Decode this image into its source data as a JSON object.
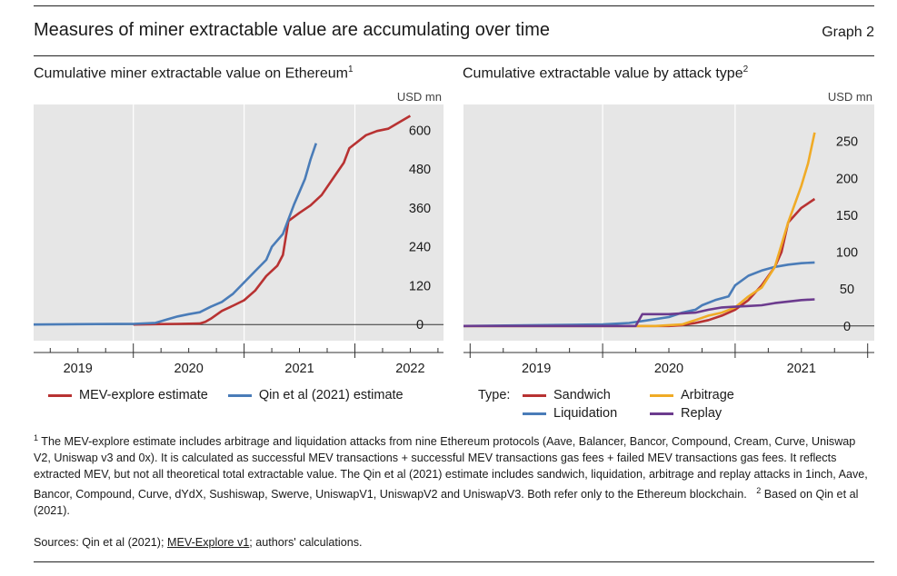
{
  "header": {
    "title": "Measures of miner extractable value are accumulating over time",
    "graph_label": "Graph 2"
  },
  "colors": {
    "red": "#b83232",
    "blue": "#4a7cb8",
    "orange": "#f0ab26",
    "purple": "#6c3b8e",
    "panel": "#e6e6e6"
  },
  "chart_data": [
    {
      "type": "line",
      "title": "Cumulative miner extractable value on Ethereum",
      "title_sup": "1",
      "unit": "USD mn",
      "ylim": [
        -50,
        680
      ],
      "yticks": [
        0,
        120,
        240,
        360,
        480,
        600
      ],
      "xlim": [
        2018.6,
        2022.3
      ],
      "xlabels": [
        {
          "label": "2019",
          "x": 2019.0
        },
        {
          "label": "2020",
          "x": 2020.0
        },
        {
          "label": "2021",
          "x": 2021.0
        },
        {
          "label": "2022",
          "x": 2022.0
        }
      ],
      "year_bounds": [
        2019.5,
        2020.5,
        2021.5
      ],
      "series": [
        {
          "name": "MEV-explore estimate",
          "color": "red",
          "points": [
            [
              2019.5,
              0
            ],
            [
              2019.7,
              1
            ],
            [
              2019.9,
              2
            ],
            [
              2020.1,
              3
            ],
            [
              2020.15,
              8
            ],
            [
              2020.2,
              18
            ],
            [
              2020.3,
              42
            ],
            [
              2020.4,
              58
            ],
            [
              2020.5,
              75
            ],
            [
              2020.6,
              105
            ],
            [
              2020.7,
              150
            ],
            [
              2020.8,
              182
            ],
            [
              2020.85,
              215
            ],
            [
              2020.9,
              320
            ],
            [
              2021.0,
              345
            ],
            [
              2021.1,
              368
            ],
            [
              2021.2,
              400
            ],
            [
              2021.3,
              450
            ],
            [
              2021.4,
              500
            ],
            [
              2021.45,
              545
            ],
            [
              2021.6,
              585
            ],
            [
              2021.7,
              598
            ],
            [
              2021.8,
              605
            ],
            [
              2021.9,
              625
            ],
            [
              2022.0,
              645
            ]
          ]
        },
        {
          "name": "Qin et al (2021) estimate",
          "color": "blue",
          "points": [
            [
              2018.6,
              0
            ],
            [
              2019.0,
              1
            ],
            [
              2019.5,
              2
            ],
            [
              2019.7,
              5
            ],
            [
              2019.8,
              15
            ],
            [
              2019.9,
              25
            ],
            [
              2020.0,
              32
            ],
            [
              2020.1,
              38
            ],
            [
              2020.2,
              55
            ],
            [
              2020.3,
              70
            ],
            [
              2020.4,
              95
            ],
            [
              2020.5,
              130
            ],
            [
              2020.6,
              165
            ],
            [
              2020.7,
              200
            ],
            [
              2020.75,
              240
            ],
            [
              2020.85,
              280
            ],
            [
              2020.95,
              370
            ],
            [
              2021.0,
              410
            ],
            [
              2021.05,
              450
            ],
            [
              2021.1,
              510
            ],
            [
              2021.15,
              560
            ]
          ]
        }
      ]
    },
    {
      "type": "line",
      "title": "Cumulative extractable value by attack type",
      "title_sup": "2",
      "unit": "USD mn",
      "ylim": [
        -20,
        300
      ],
      "yticks": [
        0,
        50,
        100,
        150,
        200,
        250
      ],
      "xlim": [
        2018.45,
        2021.55
      ],
      "xlabels": [
        {
          "label": "2019",
          "x": 2019.0
        },
        {
          "label": "2020",
          "x": 2020.0
        },
        {
          "label": "2021",
          "x": 2021.0
        }
      ],
      "year_bounds": [
        2019.5,
        2020.5
      ],
      "series": [
        {
          "name": "Sandwich",
          "color": "red",
          "points": [
            [
              2018.45,
              0
            ],
            [
              2019.5,
              0
            ],
            [
              2020.0,
              0
            ],
            [
              2020.1,
              1
            ],
            [
              2020.2,
              4
            ],
            [
              2020.3,
              8
            ],
            [
              2020.4,
              14
            ],
            [
              2020.5,
              22
            ],
            [
              2020.6,
              35
            ],
            [
              2020.7,
              55
            ],
            [
              2020.8,
              80
            ],
            [
              2020.85,
              100
            ],
            [
              2020.9,
              140
            ],
            [
              2020.95,
              150
            ],
            [
              2021.0,
              160
            ],
            [
              2021.1,
              172
            ]
          ]
        },
        {
          "name": "Liquidation",
          "color": "blue",
          "points": [
            [
              2018.45,
              0
            ],
            [
              2019.5,
              2
            ],
            [
              2019.7,
              4
            ],
            [
              2019.85,
              8
            ],
            [
              2020.0,
              12
            ],
            [
              2020.1,
              18
            ],
            [
              2020.2,
              22
            ],
            [
              2020.25,
              28
            ],
            [
              2020.35,
              35
            ],
            [
              2020.45,
              40
            ],
            [
              2020.5,
              55
            ],
            [
              2020.6,
              68
            ],
            [
              2020.7,
              75
            ],
            [
              2020.8,
              80
            ],
            [
              2020.9,
              83
            ],
            [
              2021.0,
              85
            ],
            [
              2021.1,
              86
            ]
          ]
        },
        {
          "name": "Arbitrage",
          "color": "orange",
          "points": [
            [
              2018.45,
              0
            ],
            [
              2019.9,
              0
            ],
            [
              2020.1,
              2
            ],
            [
              2020.2,
              8
            ],
            [
              2020.3,
              14
            ],
            [
              2020.4,
              18
            ],
            [
              2020.5,
              25
            ],
            [
              2020.6,
              40
            ],
            [
              2020.7,
              52
            ],
            [
              2020.8,
              80
            ],
            [
              2020.9,
              140
            ],
            [
              2021.0,
              190
            ],
            [
              2021.05,
              220
            ],
            [
              2021.1,
              262
            ]
          ]
        },
        {
          "name": "Replay",
          "color": "purple",
          "points": [
            [
              2018.45,
              0
            ],
            [
              2019.75,
              0
            ],
            [
              2019.8,
              16
            ],
            [
              2019.9,
              16
            ],
            [
              2020.0,
              16
            ],
            [
              2020.1,
              17
            ],
            [
              2020.2,
              18
            ],
            [
              2020.3,
              22
            ],
            [
              2020.4,
              25
            ],
            [
              2020.5,
              26
            ],
            [
              2020.6,
              27
            ],
            [
              2020.7,
              28
            ],
            [
              2020.8,
              31
            ],
            [
              2020.9,
              33
            ],
            [
              2021.0,
              35
            ],
            [
              2021.1,
              36
            ]
          ]
        }
      ]
    }
  ],
  "legend_left": [
    {
      "label": "MEV-explore estimate",
      "color": "red"
    },
    {
      "label": "Qin et al (2021) estimate",
      "color": "blue"
    }
  ],
  "legend_right": {
    "type_label": "Type:",
    "items": [
      {
        "label": "Sandwich",
        "color": "red"
      },
      {
        "label": "Arbitrage",
        "color": "orange"
      },
      {
        "label": "Liquidation",
        "color": "blue"
      },
      {
        "label": "Replay",
        "color": "purple"
      }
    ]
  },
  "notes": {
    "n1_mark": "1",
    "n1": "The MEV-explore estimate includes arbitrage and liquidation attacks from nine Ethereum protocols (Aave, Balancer, Bancor, Compound, Cream, Curve, Uniswap V2, Uniswap v3 and 0x). It is calculated as successful MEV transactions + successful MEV transactions gas fees + failed MEV transactions gas fees. It reflects extracted MEV, but not all theoretical total extractable value. The Qin et al (2021) estimate includes sandwich, liquidation, arbitrage and replay attacks in 1inch, Aave, Bancor, Compound, Curve, dYdX, Sushiswap, Swerve, UniswapV1, UniswapV2 and UniswapV3. Both refer only to the Ethereum blockchain.",
    "n2_mark": "2",
    "n2": "Based on Qin et al (2021)."
  },
  "sources": {
    "prefix": "Sources: Qin et al (2021);",
    "link": "MEV-Explore v1",
    "suffix": "; authors' calculations."
  }
}
